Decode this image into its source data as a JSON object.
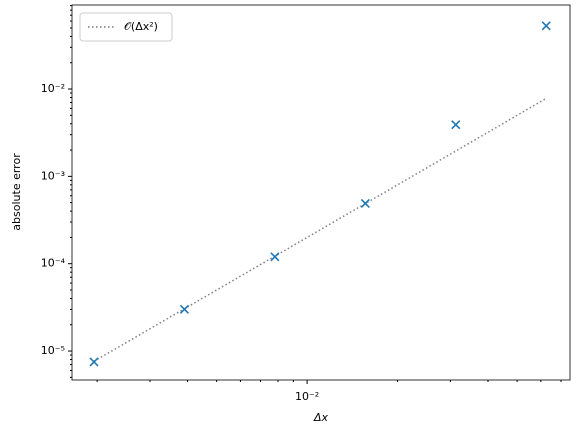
{
  "chart_data": {
    "type": "scatter",
    "xlabel": "Δx",
    "ylabel": "absolute error",
    "xscale": "log",
    "yscale": "log",
    "xlim": [
      0.00165,
      0.075
    ],
    "ylim": [
      4.66e-06,
      0.0916
    ],
    "xticks": [
      {
        "value": 0.01,
        "label": "10⁻²"
      }
    ],
    "xminorticks": [
      0.002,
      0.003,
      0.004,
      0.005,
      0.006,
      0.007,
      0.008,
      0.009,
      0.02,
      0.03,
      0.04,
      0.05,
      0.06,
      0.07
    ],
    "yticks": [
      {
        "value": 1e-05,
        "label": "10⁻⁵"
      },
      {
        "value": 0.0001,
        "label": "10⁻⁴"
      },
      {
        "value": 0.001,
        "label": "10⁻³"
      },
      {
        "value": 0.01,
        "label": "10⁻²"
      }
    ],
    "yminorticks": [
      5e-06,
      6e-06,
      7e-06,
      8e-06,
      9e-06,
      2e-05,
      3e-05,
      4e-05,
      5e-05,
      6e-05,
      7e-05,
      8e-05,
      9e-05,
      0.0002,
      0.0003,
      0.0004,
      0.0005,
      0.0006,
      0.0007,
      0.0008,
      0.0009,
      0.002,
      0.003,
      0.004,
      0.005,
      0.006,
      0.007,
      0.008,
      0.009,
      0.02,
      0.03,
      0.04,
      0.05,
      0.06,
      0.07,
      0.08,
      0.09
    ],
    "x": [
      0.001953125,
      0.00390625,
      0.0078125,
      0.015625,
      0.03125,
      0.0625
    ],
    "series": [
      {
        "name": "𝒪(Δx²)",
        "color": "#808080",
        "style": "dotted",
        "values": [
          7.63e-06,
          3.05e-05,
          0.000122,
          0.000488,
          0.00195,
          0.00781
        ]
      },
      {
        "color": "#1f77b4",
        "marker": "x",
        "values": [
          7.5e-06,
          3e-05,
          0.00012,
          0.00049,
          0.0039,
          0.053
        ]
      }
    ],
    "legend": "upper left"
  }
}
